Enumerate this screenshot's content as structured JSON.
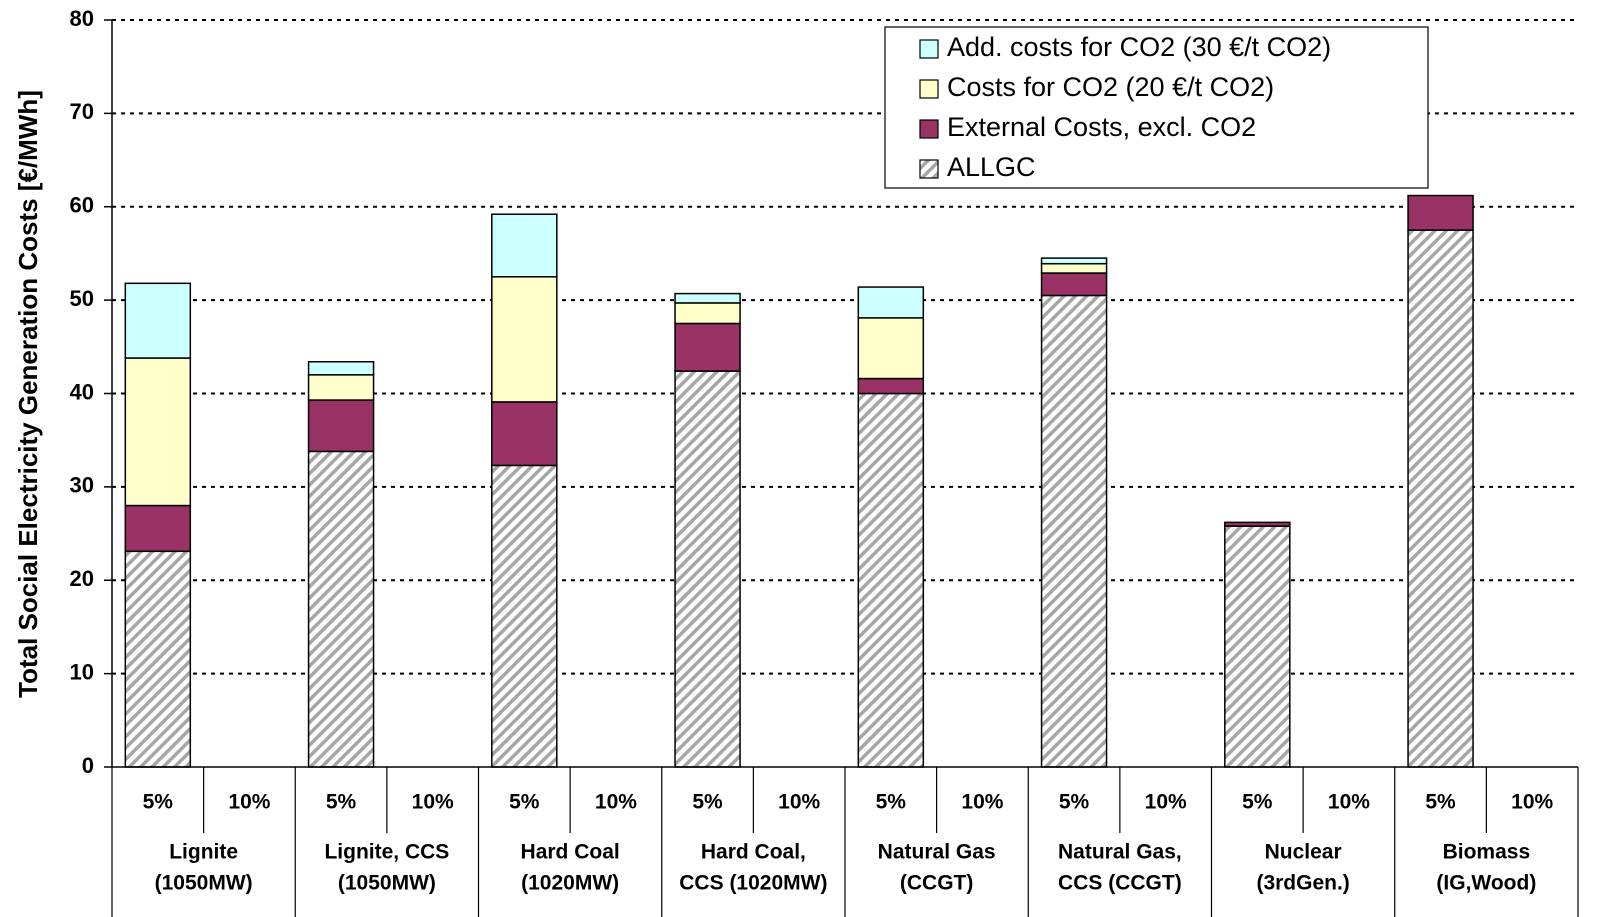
{
  "chart_data": {
    "type": "stacked_bar",
    "y_label": "Total Social Electricity Generation Costs [€/MWh]",
    "categories": [
      "5%",
      "10%",
      "5%",
      "10%",
      "5%",
      "10%",
      "5%",
      "10%",
      "5%",
      "10%",
      "5%",
      "10%",
      "5%",
      "10%",
      "5%",
      "10%"
    ],
    "groups": [
      [
        "Lignite",
        "(1050MW)"
      ],
      [
        "Lignite, CCS",
        "(1050MW)"
      ],
      [
        "Hard Coal",
        "(1020MW)"
      ],
      [
        "Hard Coal,",
        "CCS (1020MW)"
      ],
      [
        "Natural Gas",
        "(CCGT)"
      ],
      [
        "Natural Gas,",
        "CCS (CCGT)"
      ],
      [
        "Nuclear",
        "(3rdGen.)"
      ],
      [
        "Biomass",
        "(IG,Wood)"
      ]
    ],
    "series": [
      {
        "name": "ALLGC",
        "color": "#a6a6a6",
        "hatch": true,
        "values": [
          23.1,
          null,
          33.8,
          null,
          32.3,
          null,
          42.4,
          null,
          40.0,
          null,
          50.5,
          null,
          25.8,
          null,
          57.5,
          null
        ]
      },
      {
        "name": "External Costs, excl. CO2",
        "color": "#993366",
        "values": [
          4.9,
          null,
          5.5,
          null,
          6.8,
          null,
          5.1,
          null,
          1.6,
          null,
          2.4,
          null,
          0.4,
          null,
          3.7,
          null
        ]
      },
      {
        "name": "Costs for CO2 (20  €/t CO2)",
        "color": "#ffffcc",
        "values": [
          15.8,
          null,
          2.7,
          null,
          13.4,
          null,
          2.2,
          null,
          6.5,
          null,
          1.0,
          null,
          0,
          null,
          0,
          null
        ]
      },
      {
        "name": "Add. costs for CO2 (30  €/t CO2)",
        "color": "#ccffff",
        "values": [
          8.0,
          null,
          1.4,
          null,
          6.7,
          null,
          1.0,
          null,
          3.3,
          null,
          0.6,
          null,
          0,
          null,
          0,
          null
        ]
      }
    ],
    "ylim": [
      0,
      80
    ],
    "yticks": [
      0,
      10,
      20,
      30,
      40,
      50,
      60,
      70,
      80
    ],
    "grid": true,
    "legend": "upper right"
  }
}
